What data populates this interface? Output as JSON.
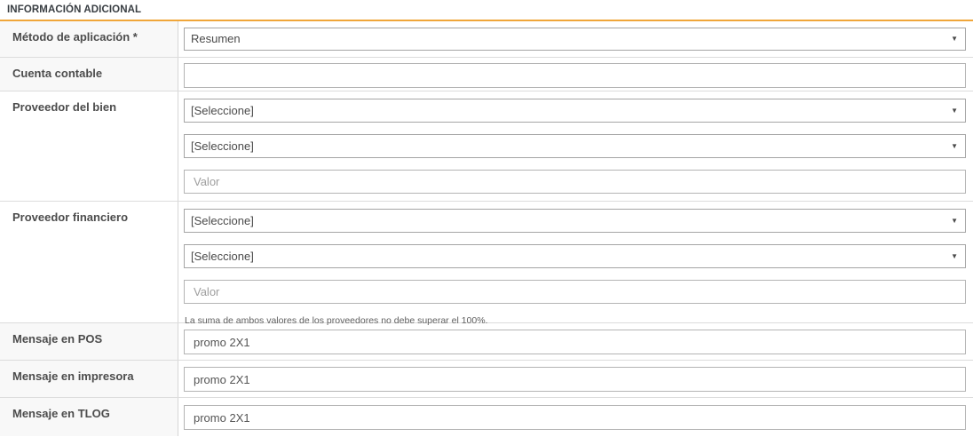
{
  "section": {
    "title": "INFORMACIÓN ADICIONAL"
  },
  "colors": {
    "accent": "#f0a63a",
    "stripe": "#f8f8f8",
    "divider": "#dcdcdc"
  },
  "icons": {
    "select_arrow": "▼"
  },
  "rows": [
    {
      "label": "Método de aplicación *",
      "type": "select",
      "value": "Resumen"
    },
    {
      "label": "Cuenta contable",
      "type": "text",
      "value": ""
    },
    {
      "label": "Proveedor del bien",
      "type": "group",
      "selects": [
        "[Seleccione]",
        "[Seleccione]"
      ],
      "value_placeholder": "Valor"
    },
    {
      "label": "Proveedor financiero",
      "type": "group",
      "selects": [
        "[Seleccione]",
        "[Seleccione]"
      ],
      "value_placeholder": "Valor",
      "help": "La suma de ambos valores de los proveedores no debe superar el 100%."
    },
    {
      "label": "Mensaje en POS",
      "type": "text",
      "value": "promo 2X1"
    },
    {
      "label": "Mensaje en impresora",
      "type": "text",
      "value": "promo 2X1"
    },
    {
      "label": "Mensaje en TLOG",
      "type": "text",
      "value": "promo 2X1"
    }
  ]
}
